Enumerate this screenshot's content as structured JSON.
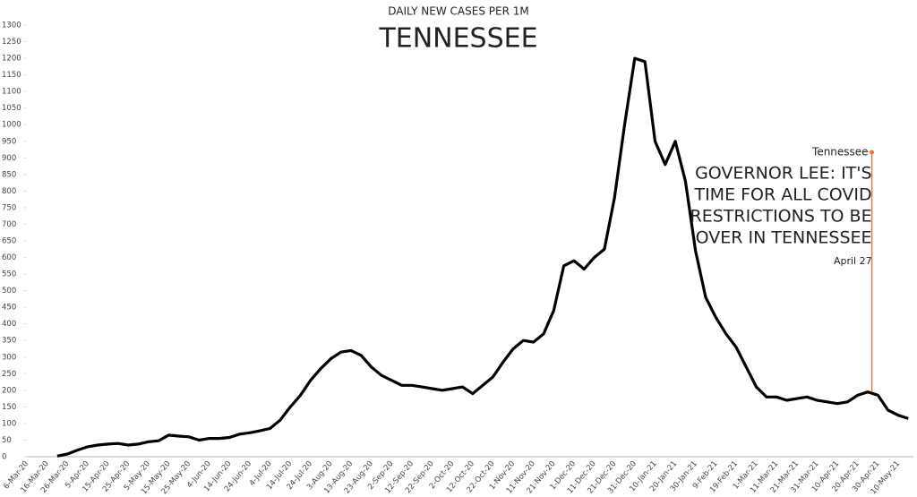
{
  "chart_data": {
    "type": "line",
    "subtitle": "DAILY NEW CASES PER 1M",
    "title": "TENNESSEE",
    "categories": [
      "6-Mar-20",
      null,
      "16-Mar-20",
      null,
      "26-Mar-20",
      null,
      "5-Apr-20",
      null,
      "15-Apr-20",
      null,
      "25-Apr-20",
      null,
      "5-May-20",
      null,
      "15-May-20",
      null,
      "25-May-20",
      null,
      "4-Jun-20",
      null,
      "14-Jun-20",
      null,
      "24-Jun-20",
      null,
      "4-Jul-20",
      null,
      "14-Jul-20",
      null,
      "24-Jul-20",
      null,
      "3-Aug-20",
      null,
      "13-Aug-20",
      null,
      "23-Aug-20",
      null,
      "2-Sep-20",
      null,
      "12-Sep-20",
      null,
      "22-Sep-20",
      null,
      "2-Oct-20",
      null,
      "12-Oct-20",
      null,
      "22-Oct-20",
      null,
      "1-Nov-20",
      null,
      "11-Nov-20",
      null,
      "21-Nov-20",
      null,
      "1-Dec-20",
      null,
      "11-Dec-20",
      null,
      "21-Dec-20",
      null,
      "31-Dec-20",
      null,
      "10-Jan-21",
      null,
      "20-Jan-21",
      null,
      "30-Jan-21",
      null,
      "9-Feb-21",
      null,
      "19-Feb-21",
      null,
      "1-Mar-21",
      null,
      "11-Mar-21",
      null,
      "21-Mar-21",
      null,
      "31-Mar-21",
      null,
      "10-Apr-21",
      null,
      "20-Apr-21",
      null,
      "30-Apr-21",
      null,
      "10-May-21",
      null
    ],
    "series": [
      {
        "name": "Tennessee",
        "color": "#000000",
        "values": [
          null,
          null,
          null,
          2,
          8,
          20,
          30,
          35,
          38,
          40,
          35,
          38,
          45,
          48,
          65,
          62,
          60,
          50,
          55,
          55,
          58,
          68,
          72,
          78,
          85,
          110,
          150,
          185,
          230,
          265,
          295,
          315,
          320,
          305,
          270,
          245,
          230,
          215,
          215,
          210,
          205,
          200,
          205,
          210,
          190,
          215,
          240,
          285,
          325,
          350,
          345,
          370,
          440,
          575,
          590,
          565,
          600,
          625,
          780,
          1000,
          1200,
          1190,
          950,
          880,
          950,
          830,
          620,
          480,
          420,
          370,
          330,
          270,
          210,
          180,
          180,
          170,
          175,
          180,
          170,
          165,
          160,
          165,
          185,
          195,
          185,
          140,
          125,
          115
        ]
      }
    ],
    "ylim": [
      0,
      1300
    ],
    "yticks": [
      0,
      50,
      100,
      150,
      200,
      250,
      300,
      350,
      400,
      450,
      500,
      550,
      600,
      650,
      700,
      750,
      800,
      850,
      900,
      950,
      1000,
      1050,
      1100,
      1150,
      1200,
      1250,
      1300
    ],
    "grid": false,
    "annotation": {
      "label": "Tennessee",
      "lines": [
        "GOVERNOR LEE: IT'S",
        "TIME FOR ALL COVID",
        "RESTRICTIONS TO BE",
        "OVER IN TENNESSEE"
      ],
      "date": "April 27",
      "color": "#e07b39"
    }
  }
}
